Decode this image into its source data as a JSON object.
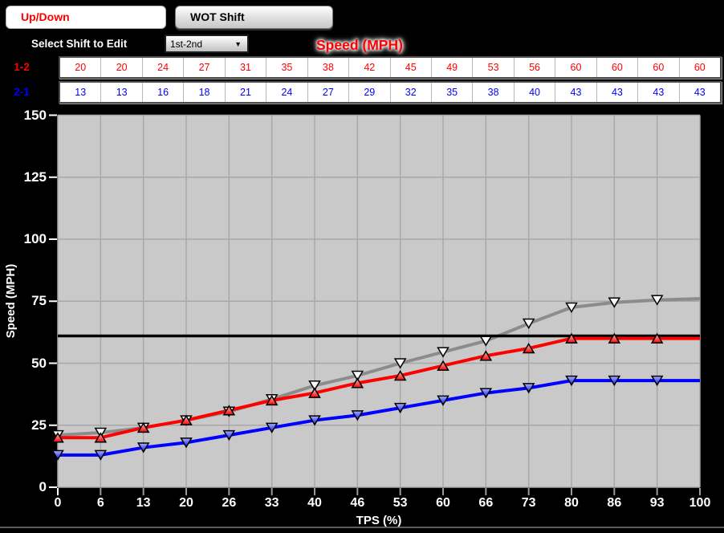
{
  "tabs": {
    "updown": "Up/Down",
    "wot": "WOT Shift"
  },
  "controls": {
    "select_label": "Select Shift to Edit",
    "shift_selected": "1st-2nd",
    "chevron_icon": "▼"
  },
  "chart_title": "Speed (MPH)",
  "table": {
    "rows": [
      {
        "label": "1-2",
        "color": "#ff0000",
        "values": [
          20,
          20,
          24,
          27,
          31,
          35,
          38,
          42,
          45,
          49,
          53,
          56,
          60,
          60,
          60,
          60
        ]
      },
      {
        "label": "2-1",
        "color": "#0000ff",
        "values": [
          13,
          13,
          16,
          18,
          21,
          24,
          27,
          29,
          32,
          35,
          38,
          40,
          43,
          43,
          43,
          43
        ]
      }
    ]
  },
  "chart_data": {
    "type": "line",
    "x": [
      0,
      6,
      13,
      20,
      26,
      33,
      40,
      46,
      53,
      60,
      66,
      73,
      80,
      86,
      93,
      100
    ],
    "xlabel": "TPS (%)",
    "ylabel": "Speed (MPH)",
    "ylim": [
      0,
      150
    ],
    "yticks": [
      0,
      25,
      50,
      75,
      100,
      125,
      150
    ],
    "grid": true,
    "plot_bg": "#c9c9c9",
    "grid_color": "#a8a8a8",
    "tick_color": "#9a9a9a",
    "series": [
      {
        "name": "wot-trace",
        "color": "#8c8c8c",
        "marker": "down",
        "marker_fill": "#e8e8e8",
        "marker_light": "#ffffff",
        "values": [
          21,
          22,
          24,
          27,
          30.5,
          35.5,
          41,
          45,
          50,
          54.5,
          59,
          66,
          72.5,
          74.5,
          75.5,
          76
        ]
      },
      {
        "name": "1-2",
        "color": "#ff0000",
        "marker": "up",
        "marker_fill": "#f50505",
        "marker_light": "#ffbdbd",
        "values": [
          20,
          20,
          24,
          27,
          31,
          35,
          38,
          42,
          45,
          49,
          53,
          56,
          60,
          60,
          60,
          60
        ]
      },
      {
        "name": "2-1",
        "color": "#0000ff",
        "marker": "down",
        "marker_fill": "#1212f0",
        "marker_light": "#aab4ff",
        "values": [
          13,
          13,
          16,
          18,
          21,
          24,
          27,
          29,
          32,
          35,
          38,
          40,
          43,
          43,
          43,
          43
        ]
      }
    ],
    "reference_line": {
      "value": 61,
      "color": "#000000"
    }
  }
}
